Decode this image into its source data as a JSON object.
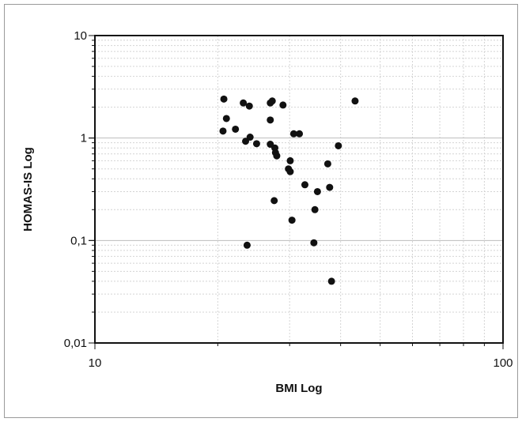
{
  "chart_data": {
    "type": "scatter",
    "title": "",
    "xlabel": "BMI Log",
    "ylabel": "HOMAS-IS Log",
    "x_scale": "log",
    "y_scale": "log",
    "xlim": [
      10,
      100
    ],
    "ylim": [
      0.01,
      10
    ],
    "grid": true,
    "x_ticks": [
      {
        "value": 10,
        "label": "10"
      },
      {
        "value": 100,
        "label": "100"
      }
    ],
    "y_ticks": [
      {
        "value": 0.01,
        "label": "0,01"
      },
      {
        "value": 0.1,
        "label": "0,1"
      },
      {
        "value": 1,
        "label": "1"
      },
      {
        "value": 10,
        "label": "10"
      }
    ],
    "marker_color": "#111111",
    "series": [
      {
        "points": [
          [
            20.7,
            2.4
          ],
          [
            21.0,
            1.55
          ],
          [
            20.6,
            1.17
          ],
          [
            22.1,
            1.22
          ],
          [
            23.1,
            2.2
          ],
          [
            23.9,
            2.05
          ],
          [
            23.4,
            0.93
          ],
          [
            24.0,
            1.02
          ],
          [
            24.9,
            0.88
          ],
          [
            23.6,
            0.09
          ],
          [
            26.9,
            2.2
          ],
          [
            27.2,
            2.3
          ],
          [
            28.9,
            2.1
          ],
          [
            26.9,
            1.5
          ],
          [
            26.9,
            0.87
          ],
          [
            27.6,
            0.8
          ],
          [
            27.7,
            0.72
          ],
          [
            27.9,
            0.67
          ],
          [
            27.5,
            0.245
          ],
          [
            30.1,
            0.6
          ],
          [
            29.8,
            0.5
          ],
          [
            30.1,
            0.47
          ],
          [
            30.7,
            1.1
          ],
          [
            31.7,
            1.1
          ],
          [
            32.7,
            0.35
          ],
          [
            30.4,
            0.158
          ],
          [
            34.6,
            0.2
          ],
          [
            35.1,
            0.3
          ],
          [
            34.4,
            0.095
          ],
          [
            37.2,
            0.56
          ],
          [
            37.6,
            0.33
          ],
          [
            38.0,
            0.04
          ],
          [
            39.5,
            0.84
          ],
          [
            43.4,
            2.3
          ]
        ]
      }
    ]
  }
}
